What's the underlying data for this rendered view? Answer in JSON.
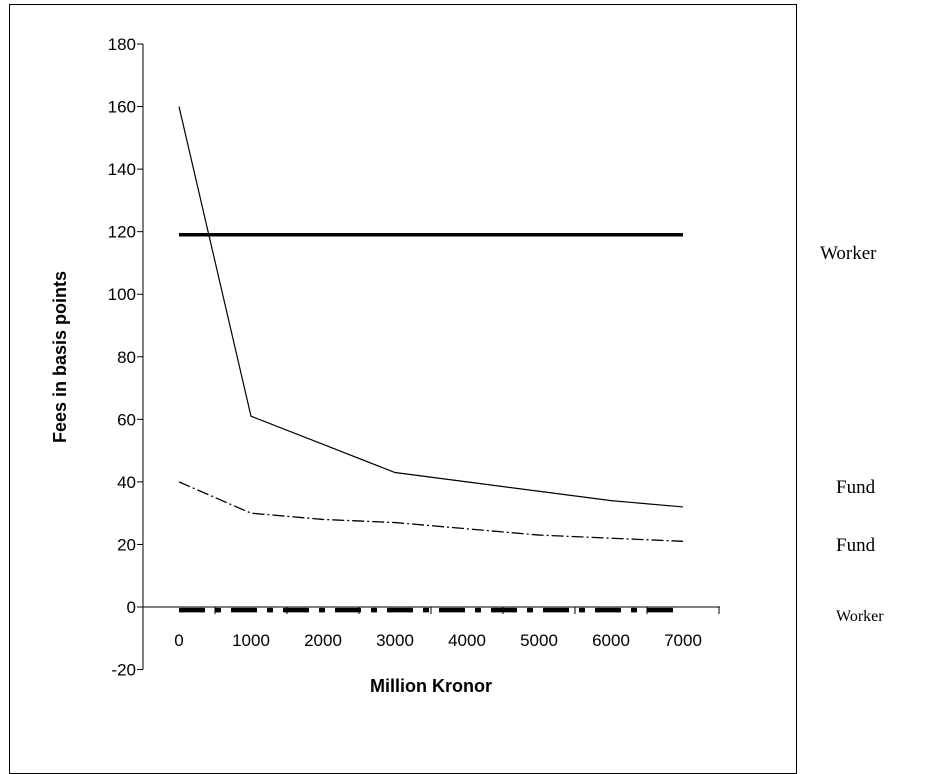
{
  "chart_data": {
    "type": "line",
    "title": "",
    "xlabel": "Million Kronor",
    "ylabel": "Fees in basis points",
    "categories": [
      "0",
      "1000",
      "2000",
      "3000",
      "4000",
      "5000",
      "6000",
      "7000"
    ],
    "x": [
      0,
      1000,
      2000,
      3000,
      4000,
      5000,
      6000,
      7000
    ],
    "ylim": [
      -20,
      180
    ],
    "yticks": [
      -20,
      0,
      20,
      40,
      60,
      80,
      100,
      120,
      140,
      160,
      180
    ],
    "grid": false,
    "series": [
      {
        "name": "",
        "style": "solid-thin",
        "values": [
          160,
          61,
          52,
          43,
          40,
          37,
          34,
          32
        ]
      },
      {
        "name": "",
        "style": "solid-thick",
        "values": [
          119,
          119,
          119,
          119,
          119,
          119,
          119,
          119
        ]
      },
      {
        "name": "",
        "style": "dash-dot",
        "values": [
          40,
          30,
          28,
          27,
          25,
          23,
          22,
          21
        ]
      },
      {
        "name": "",
        "style": "dash-dot-thick",
        "values": [
          -1,
          -1,
          -1,
          -1,
          -1,
          -1,
          -1,
          -1
        ]
      }
    ],
    "side_labels": [
      "Worker",
      "Fund",
      "Fund",
      "Worker"
    ],
    "colors": {
      "line": "#000000"
    }
  }
}
